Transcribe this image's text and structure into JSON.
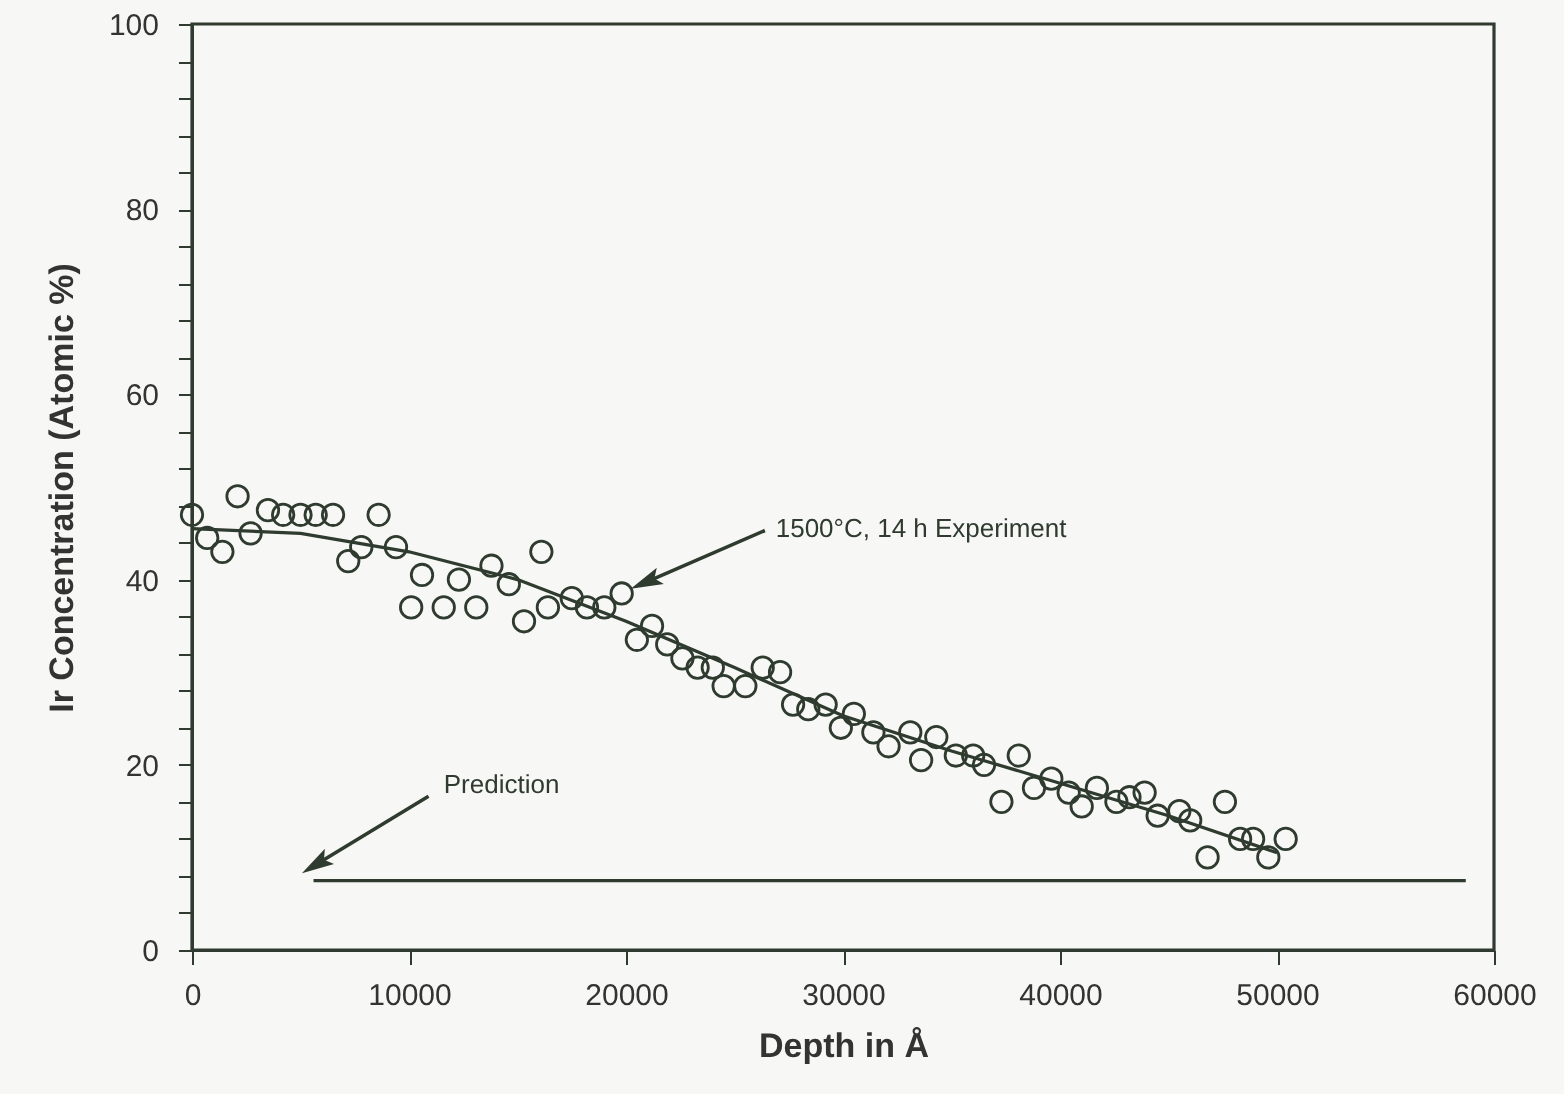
{
  "chart_data": {
    "type": "scatter",
    "xlabel": "Depth in Å",
    "ylabel": "Ir Concentration (Atomic %)",
    "xlim": [
      0,
      60000
    ],
    "xticks": [
      0,
      10000,
      20000,
      30000,
      40000,
      50000,
      60000
    ],
    "ylim": [
      0,
      100
    ],
    "yticks": [
      0,
      {
        "value": 4,
        "label": null
      },
      {
        "value": 8,
        "label": null
      },
      {
        "value": 12,
        "label": null
      },
      {
        "value": 16,
        "label": null
      },
      20,
      {
        "value": 24,
        "label": null
      },
      {
        "value": 28,
        "label": null
      },
      {
        "value": 32,
        "label": null
      },
      {
        "value": 36,
        "label": null
      },
      40,
      {
        "value": 44,
        "label": null
      },
      {
        "value": 48,
        "label": null
      },
      {
        "value": 52,
        "label": null
      },
      {
        "value": 56,
        "label": null
      },
      60,
      {
        "value": 64,
        "label": null
      },
      {
        "value": 68,
        "label": null
      },
      {
        "value": 72,
        "label": null
      },
      {
        "value": 76,
        "label": null
      },
      80,
      {
        "value": 84,
        "label": null
      },
      {
        "value": 88,
        "label": null
      },
      {
        "value": 92,
        "label": null
      },
      {
        "value": 96,
        "label": null
      },
      100
    ],
    "grid": false,
    "annotations": [
      "1500°C, 14 h Experiment",
      {
        "text": "Prediction",
        "x": 5700,
        "y": 9.2
      }
    ],
    "series": [
      {
        "marker": "circle",
        "color": "#2e3b2e",
        "x": [
          0,
          700,
          1400,
          2100,
          2700,
          3500,
          4200,
          5000,
          5700,
          6500,
          7200,
          7800,
          8600,
          9400,
          10100,
          10600,
          11600,
          12300,
          13100,
          13800,
          14600,
          15300,
          16100,
          16400,
          17500,
          18200,
          19000,
          19800,
          20500,
          21200,
          21900,
          22600,
          23300,
          24000,
          24500,
          25500,
          26300,
          27100,
          27700,
          28400,
          29200,
          29900,
          30500,
          31400,
          32100,
          33100,
          33600,
          34300,
          35200,
          36000,
          36500,
          37300,
          38100,
          38800,
          39600,
          40400,
          41000,
          41700,
          42600,
          43200,
          43900,
          44500,
          45500,
          46000,
          46800,
          47600,
          48300,
          48900,
          49600,
          50400
        ],
        "values": [
          47,
          44.5,
          43,
          49,
          45,
          47.5,
          47,
          47,
          47,
          47,
          42,
          43.5,
          47,
          43.5,
          37,
          40.5,
          37,
          40,
          37,
          41.5,
          39.5,
          35.5,
          43,
          37,
          38,
          37,
          37,
          38.5,
          33.5,
          35,
          33,
          31.5,
          30.5,
          30.5,
          28.5,
          28.5,
          30.5,
          30,
          26.5,
          26,
          26.5,
          24,
          25.5,
          23.5,
          22,
          23.5,
          20.5,
          23,
          21,
          21,
          20,
          16,
          21,
          17.5,
          18.5,
          17,
          15.5,
          17.5,
          16,
          16.5,
          17,
          14.5,
          15,
          14,
          10,
          16,
          12,
          12,
          10,
          12
        ]
      },
      {
        "type": "line",
        "color": "#2e3b2e",
        "x": [
          0,
          5000,
          10000,
          15000,
          20000,
          25000,
          30000,
          35000,
          40000,
          45000,
          50000
        ],
        "values": [
          45.5,
          45,
          43,
          40,
          35.5,
          30.5,
          25.3,
          21.5,
          18,
          14.5,
          10.5
        ]
      },
      {
        "type": "line",
        "color": "#2e3b2e",
        "x": [
          5600,
          58700
        ],
        "values": [
          7.5,
          7.5
        ]
      }
    ]
  }
}
